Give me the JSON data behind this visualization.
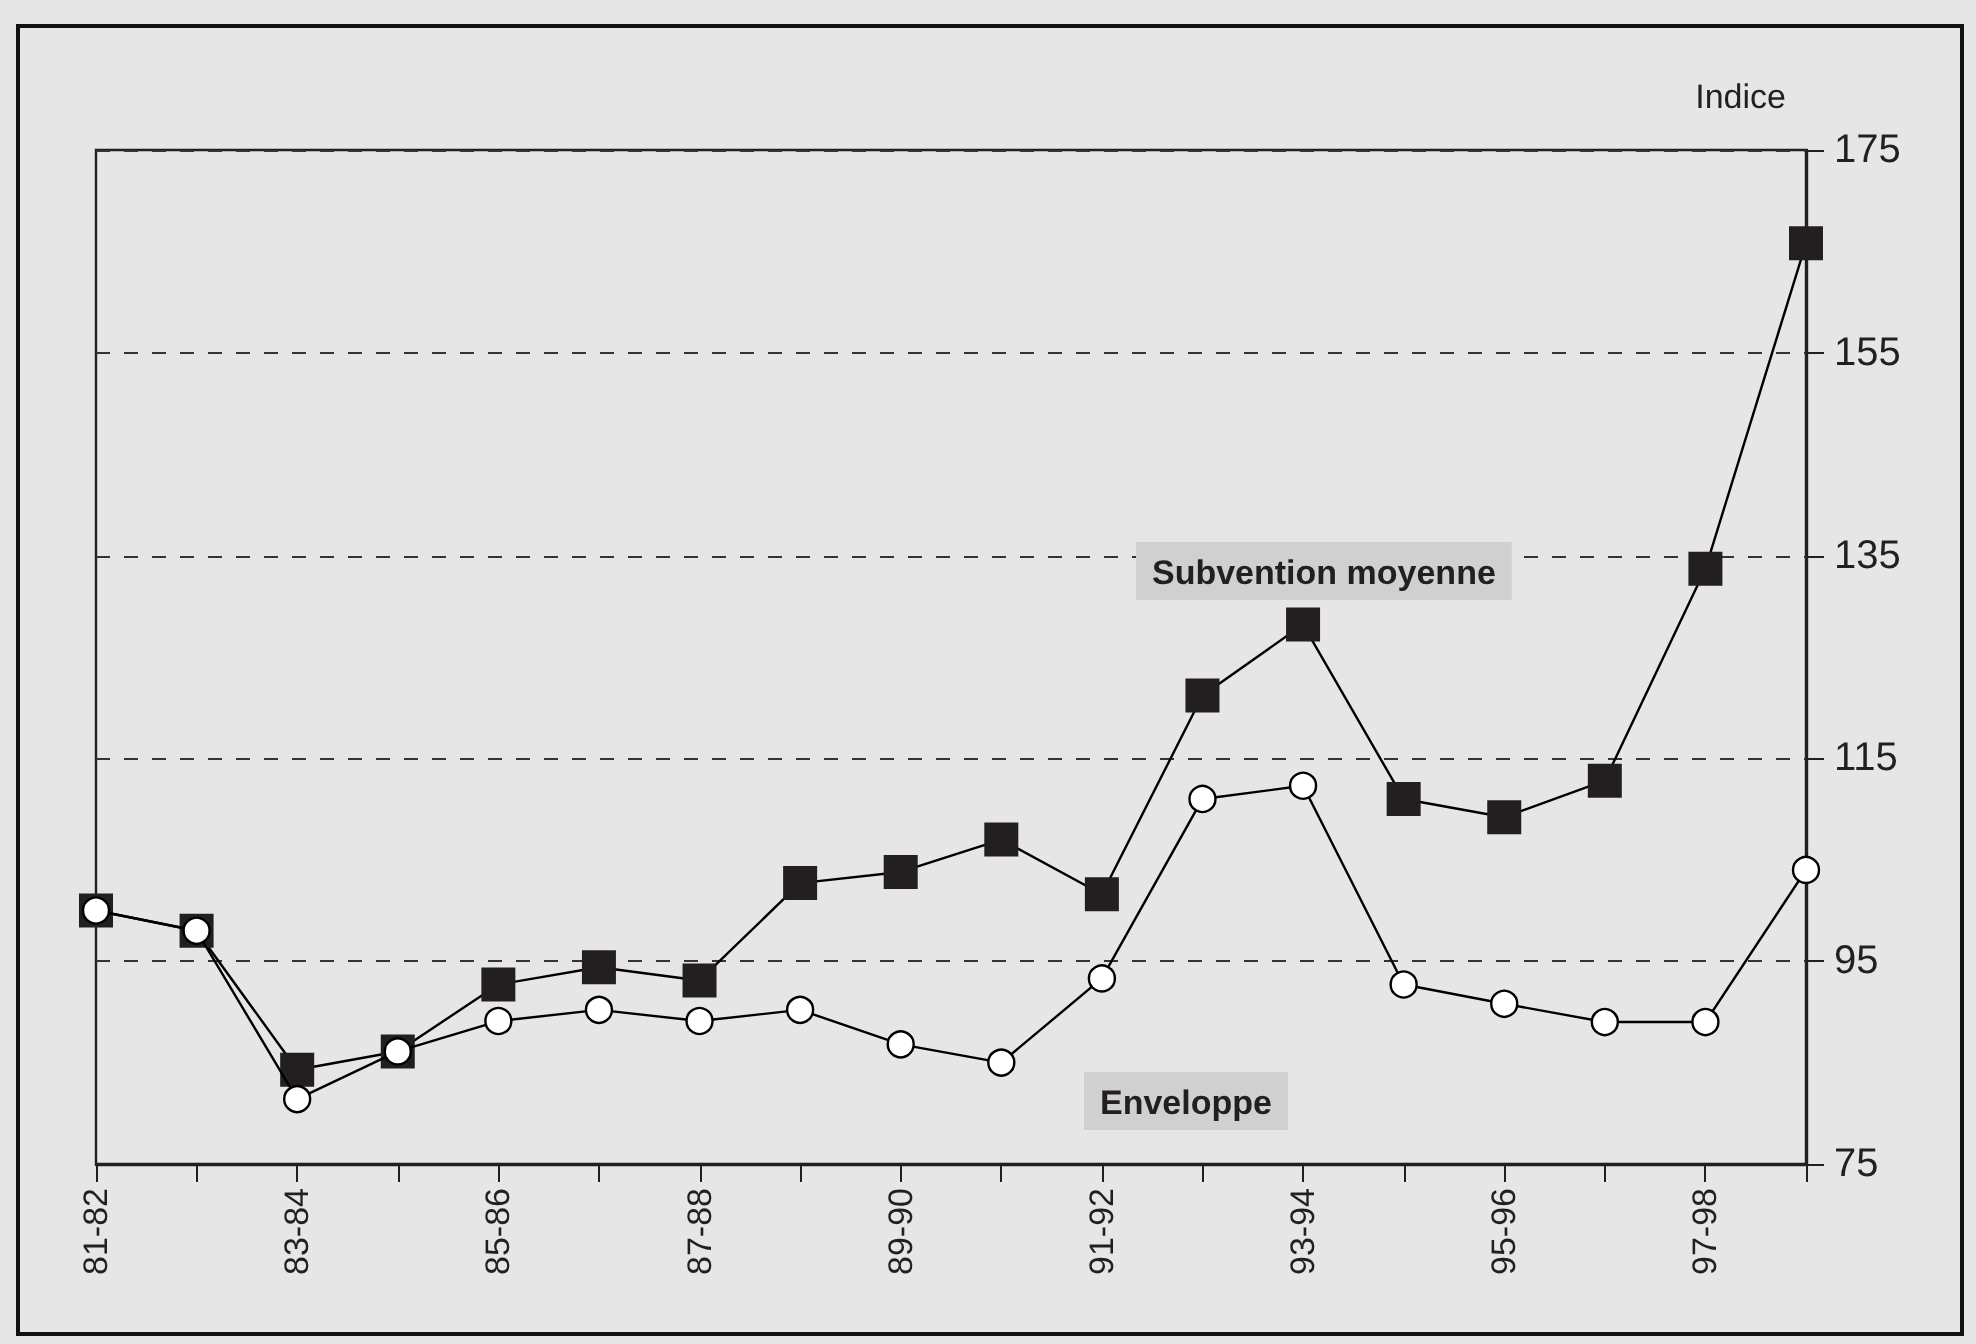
{
  "chart_data": {
    "type": "line",
    "ylabel": "Indice",
    "categories": [
      "81-82",
      null,
      "83-84",
      null,
      "85-86",
      null,
      "87-88",
      null,
      "89-90",
      null,
      "91-92",
      null,
      "93-94",
      null,
      "95-96",
      null,
      "97-98",
      null
    ],
    "series": [
      {
        "name": "Subvention moyenne",
        "color": "#231f20",
        "marker": "square",
        "values": [
          100,
          98,
          84.3,
          86.1,
          92.7,
          94.4,
          93.1,
          102.7,
          103.8,
          107,
          101.6,
          121.2,
          128.2,
          111,
          109.2,
          112.8,
          133.7,
          165.8
        ]
      },
      {
        "name": "Enveloppe",
        "color": "#ffffff",
        "marker": "circle",
        "values": [
          100,
          98,
          81.4,
          86.1,
          89.1,
          90.2,
          89.1,
          90.2,
          86.8,
          85,
          93.3,
          111,
          112.3,
          92.7,
          90.8,
          89,
          89,
          104
        ]
      }
    ],
    "ylim": [
      75,
      175
    ],
    "yticks": [
      75,
      95,
      115,
      135,
      155,
      175
    ],
    "grid": "y",
    "legend": false,
    "line_style": "solid"
  }
}
